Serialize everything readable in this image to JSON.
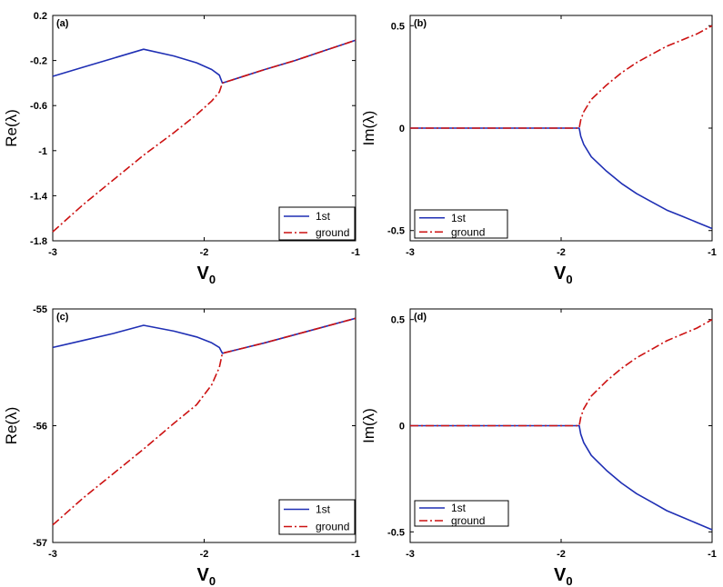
{
  "chart_data": [
    {
      "type": "line",
      "panel_label": "(a)",
      "xlabel": "V",
      "xlabel_sub": "0",
      "ylabel": "Re(λ)",
      "xlim": [
        -3,
        -1
      ],
      "ylim": [
        -1.8,
        0.2
      ],
      "xticks": [
        -3,
        -2,
        -1
      ],
      "xtick_labels": [
        "-3",
        "-2",
        "-1"
      ],
      "yticks": [
        0.2,
        -0.2,
        -0.6,
        -1,
        -1.4,
        -1.8
      ],
      "ytick_labels": [
        "0.2",
        "-0.2",
        "-0.6",
        "-1",
        "-1.4",
        "-1.8"
      ],
      "legend_position": "bottom-right",
      "series": [
        {
          "name": "1st",
          "style": "solid",
          "color": "#1f2fb4",
          "x": [
            -3,
            -2.8,
            -2.6,
            -2.4,
            -2.2,
            -2.05,
            -1.95,
            -1.9,
            -1.88,
            -1.6,
            -1.4,
            -1.2,
            -1
          ],
          "y": [
            -0.34,
            -0.26,
            -0.18,
            -0.1,
            -0.16,
            -0.22,
            -0.28,
            -0.33,
            -0.4,
            -0.28,
            -0.2,
            -0.11,
            -0.02
          ]
        },
        {
          "name": "ground",
          "style": "dashdot",
          "color": "#cc1111",
          "x": [
            -3,
            -2.8,
            -2.6,
            -2.4,
            -2.2,
            -2.05,
            -1.95,
            -1.9,
            -1.88,
            -1.6,
            -1.4,
            -1.2,
            -1
          ],
          "y": [
            -1.72,
            -1.48,
            -1.26,
            -1.04,
            -0.84,
            -0.68,
            -0.56,
            -0.48,
            -0.4,
            -0.28,
            -0.2,
            -0.11,
            -0.02
          ]
        }
      ]
    },
    {
      "type": "line",
      "panel_label": "(b)",
      "xlabel": "V",
      "xlabel_sub": "0",
      "ylabel": "Im(λ)",
      "xlim": [
        -3,
        -1
      ],
      "ylim": [
        -0.55,
        0.55
      ],
      "xticks": [
        -3,
        -2,
        -1
      ],
      "xtick_labels": [
        "-3",
        "-2",
        "-1"
      ],
      "yticks": [
        0.5,
        0,
        -0.5
      ],
      "ytick_labels": [
        "0.5",
        "0",
        "-0.5"
      ],
      "legend_position": "bottom-left",
      "series": [
        {
          "name": "1st",
          "style": "solid",
          "color": "#1f2fb4",
          "x": [
            -3,
            -2.5,
            -2.0,
            -1.88,
            -1.87,
            -1.85,
            -1.8,
            -1.7,
            -1.6,
            -1.5,
            -1.4,
            -1.3,
            -1.2,
            -1.1,
            -1
          ],
          "y": [
            0,
            0,
            0,
            0,
            -0.04,
            -0.08,
            -0.14,
            -0.21,
            -0.27,
            -0.32,
            -0.36,
            -0.4,
            -0.43,
            -0.46,
            -0.49
          ]
        },
        {
          "name": "ground",
          "style": "dashdot",
          "color": "#cc1111",
          "x": [
            -3,
            -2.5,
            -2.0,
            -1.88,
            -1.87,
            -1.85,
            -1.8,
            -1.7,
            -1.6,
            -1.5,
            -1.4,
            -1.3,
            -1.2,
            -1.1,
            -1
          ],
          "y": [
            0,
            0,
            0,
            0,
            0.04,
            0.08,
            0.14,
            0.21,
            0.27,
            0.32,
            0.36,
            0.4,
            0.43,
            0.46,
            0.5
          ]
        }
      ]
    },
    {
      "type": "line",
      "panel_label": "(c)",
      "xlabel": "V",
      "xlabel_sub": "0",
      "ylabel": "Re(λ)",
      "xlim": [
        -3,
        -1
      ],
      "ylim": [
        -57,
        -55
      ],
      "xticks": [
        -3,
        -2,
        -1
      ],
      "xtick_labels": [
        "-3",
        "-2",
        "-1"
      ],
      "yticks": [
        -55,
        -56,
        -57
      ],
      "ytick_labels": [
        "-55",
        "-56",
        "-57"
      ],
      "legend_position": "bottom-right",
      "series": [
        {
          "name": "1st",
          "style": "solid",
          "color": "#1f2fb4",
          "x": [
            -3,
            -2.8,
            -2.6,
            -2.4,
            -2.2,
            -2.05,
            -1.95,
            -1.9,
            -1.88,
            -1.6,
            -1.4,
            -1.2,
            -1
          ],
          "y": [
            -55.33,
            -55.27,
            -55.21,
            -55.14,
            -55.19,
            -55.24,
            -55.29,
            -55.33,
            -55.38,
            -55.29,
            -55.22,
            -55.15,
            -55.08
          ]
        },
        {
          "name": "ground",
          "style": "dashdot",
          "color": "#cc1111",
          "x": [
            -3,
            -2.8,
            -2.6,
            -2.4,
            -2.2,
            -2.05,
            -1.95,
            -1.9,
            -1.88,
            -1.6,
            -1.4,
            -1.2,
            -1
          ],
          "y": [
            -56.85,
            -56.62,
            -56.41,
            -56.2,
            -55.98,
            -55.82,
            -55.65,
            -55.5,
            -55.38,
            -55.29,
            -55.22,
            -55.15,
            -55.08
          ]
        }
      ]
    },
    {
      "type": "line",
      "panel_label": "(d)",
      "xlabel": "V",
      "xlabel_sub": "0",
      "ylabel": "Im(λ)",
      "xlim": [
        -3,
        -1
      ],
      "ylim": [
        -0.55,
        0.55
      ],
      "xticks": [
        -3,
        -2,
        -1
      ],
      "xtick_labels": [
        "-3",
        "-2",
        "-1"
      ],
      "yticks": [
        0.5,
        0,
        -0.5
      ],
      "ytick_labels": [
        "0.5",
        "0",
        "-0.5"
      ],
      "legend_position": "bottom-left",
      "series": [
        {
          "name": "1st",
          "style": "solid",
          "color": "#1f2fb4",
          "x": [
            -3,
            -2.5,
            -2.0,
            -1.88,
            -1.87,
            -1.85,
            -1.8,
            -1.7,
            -1.6,
            -1.5,
            -1.4,
            -1.3,
            -1.2,
            -1.1,
            -1
          ],
          "y": [
            0,
            0,
            0,
            0,
            -0.04,
            -0.08,
            -0.14,
            -0.21,
            -0.27,
            -0.32,
            -0.36,
            -0.4,
            -0.43,
            -0.46,
            -0.49
          ]
        },
        {
          "name": "ground",
          "style": "dashdot",
          "color": "#cc1111",
          "x": [
            -3,
            -2.5,
            -2.0,
            -1.88,
            -1.87,
            -1.85,
            -1.8,
            -1.7,
            -1.6,
            -1.5,
            -1.4,
            -1.3,
            -1.2,
            -1.1,
            -1
          ],
          "y": [
            0,
            0,
            0,
            0,
            0.04,
            0.08,
            0.14,
            0.21,
            0.27,
            0.32,
            0.36,
            0.4,
            0.43,
            0.46,
            0.5
          ]
        }
      ]
    }
  ]
}
